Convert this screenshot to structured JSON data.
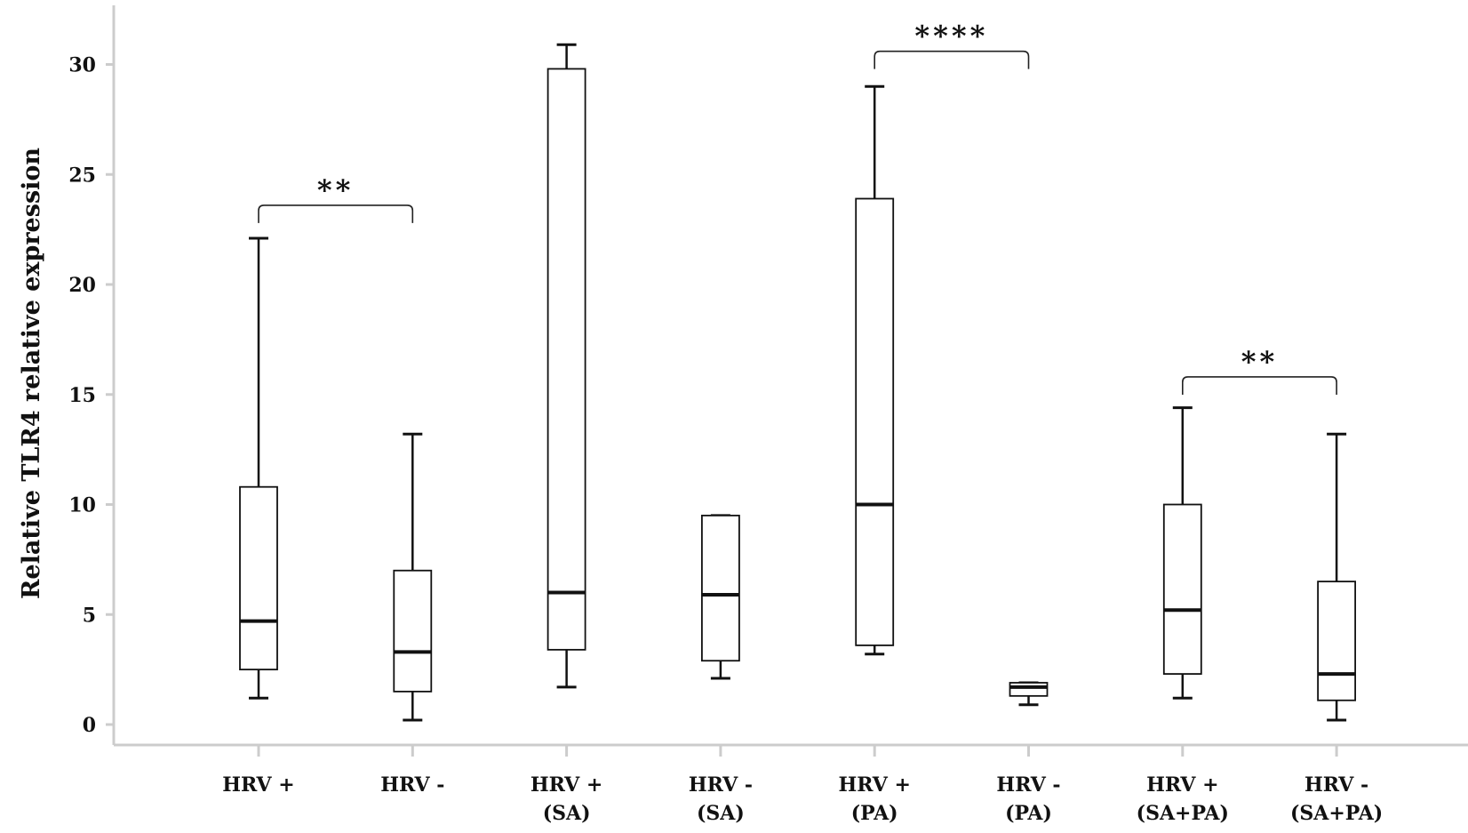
{
  "chart_data": {
    "type": "boxplot",
    "title": "",
    "xlabel": "",
    "ylabel": "Relative TLR4 relative expression",
    "ylim": [
      -1,
      32
    ],
    "yticks": [
      0,
      5,
      10,
      15,
      20,
      25,
      30
    ],
    "grid": false,
    "categories": [
      [
        "HRV +"
      ],
      [
        "HRV -"
      ],
      [
        "HRV +",
        "(SA)"
      ],
      [
        "HRV -",
        "(SA)"
      ],
      [
        "HRV +",
        "(PA)"
      ],
      [
        "HRV -",
        "(PA)"
      ],
      [
        "HRV +",
        "(SA+PA)"
      ],
      [
        "HRV -",
        "(SA+PA)"
      ]
    ],
    "boxes": [
      {
        "min": 1.2,
        "q1": 2.5,
        "median": 4.7,
        "q3": 10.8,
        "max": 22.1
      },
      {
        "min": 0.2,
        "q1": 1.5,
        "median": 3.3,
        "q3": 7.0,
        "max": 13.2
      },
      {
        "min": 1.7,
        "q1": 3.4,
        "median": 6.0,
        "q3": 29.8,
        "max": 30.9
      },
      {
        "min": 2.1,
        "q1": 2.9,
        "median": 5.9,
        "q3": 9.5,
        "max": 9.5
      },
      {
        "min": 3.2,
        "q1": 3.6,
        "median": 10.0,
        "q3": 23.9,
        "max": 29.0
      },
      {
        "min": 0.9,
        "q1": 1.3,
        "median": 1.7,
        "q3": 1.9,
        "max": 1.9
      },
      {
        "min": 1.2,
        "q1": 2.3,
        "median": 5.2,
        "q3": 10.0,
        "max": 14.4
      },
      {
        "min": 0.2,
        "q1": 1.1,
        "median": 2.3,
        "q3": 6.5,
        "max": 13.2
      }
    ],
    "significance": [
      {
        "from": 0,
        "to": 1,
        "label": "**",
        "y": 23.6
      },
      {
        "from": 4,
        "to": 5,
        "label": "****",
        "y": 30.6
      },
      {
        "from": 6,
        "to": 7,
        "label": "**",
        "y": 15.8
      }
    ]
  }
}
